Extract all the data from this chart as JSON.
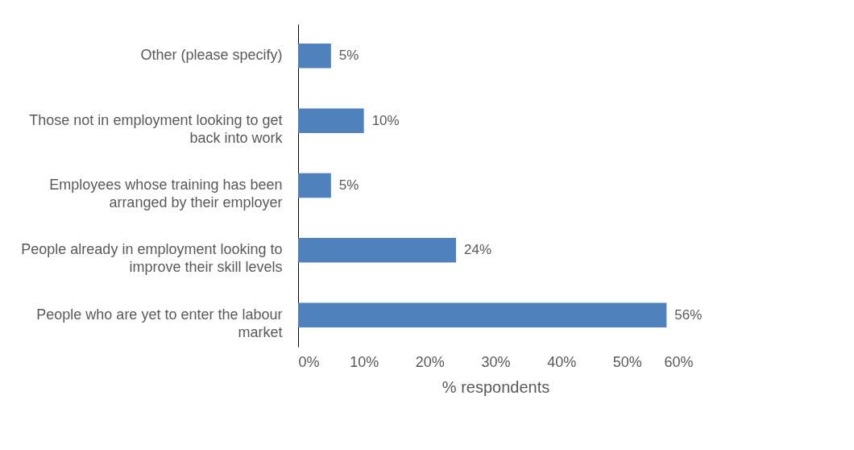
{
  "chart_data": {
    "type": "bar",
    "orientation": "horizontal",
    "xlabel": "% respondents",
    "categories": [
      "Other (please specify)",
      "Those not in employment looking to get back into work",
      "Employees whose training has been arranged by their employer",
      "People already in employment looking to improve their skill levels",
      "People who are yet to enter the labour market"
    ],
    "values": [
      5,
      10,
      5,
      24,
      56
    ],
    "value_labels": [
      "5%",
      "10%",
      "5%",
      "24%",
      "56%"
    ],
    "color": "#4f81bd",
    "xlim": [
      0,
      60
    ],
    "xticks": [
      {
        "value": 0,
        "label": "0%"
      },
      {
        "value": 10,
        "label": "10%"
      },
      {
        "value": 20,
        "label": "20%"
      },
      {
        "value": 30,
        "label": "30%"
      },
      {
        "value": 40,
        "label": "40%"
      },
      {
        "value": 50,
        "label": "50%"
      },
      {
        "value": 60,
        "label": "60%"
      }
    ],
    "grid": false
  }
}
